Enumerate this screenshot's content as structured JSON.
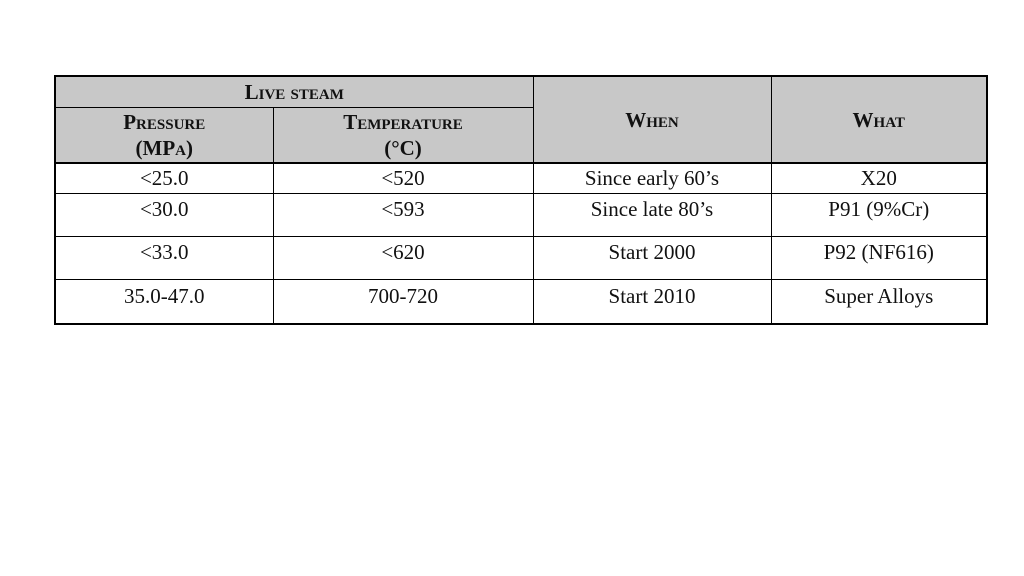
{
  "table": {
    "header": {
      "group": "Live steam",
      "pressure": [
        "Pressure",
        "(MPa)"
      ],
      "temperature": [
        "Temperature",
        "(°C)"
      ],
      "when": "When",
      "what": "What"
    },
    "rows": [
      [
        "<25.0",
        "<520",
        "Since early 60’s",
        "X20"
      ],
      [
        "<30.0",
        "<593",
        "Since late 80’s",
        "P91 (9%Cr)"
      ],
      [
        "<33.0",
        "<620",
        "Start 2000",
        "P92 (NF616)"
      ],
      [
        "35.0-47.0",
        "700-720",
        "Start 2010",
        "Super Alloys"
      ]
    ]
  }
}
